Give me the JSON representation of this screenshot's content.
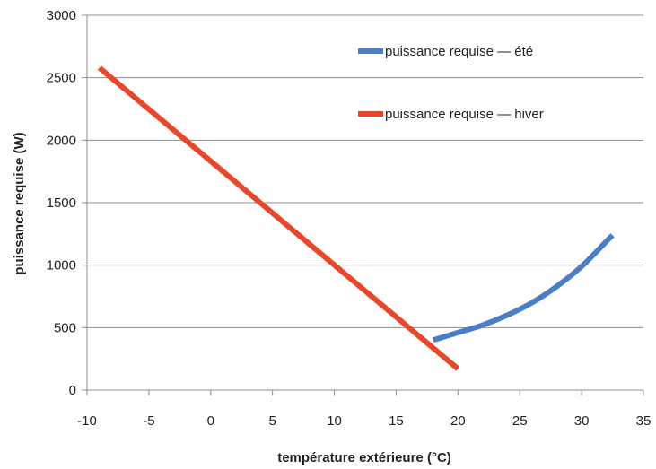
{
  "chart_data": {
    "type": "line",
    "title": "",
    "xlabel": "température extérieure (°C)",
    "ylabel": "puissance requise (W)",
    "xlim": [
      -10,
      35
    ],
    "ylim": [
      0,
      3000
    ],
    "grid": "horizontal",
    "legend_position": "top-right",
    "x_ticks": [
      "-10",
      "-5",
      "0",
      "5",
      "10",
      "15",
      "20",
      "25",
      "30",
      "35"
    ],
    "y_ticks": [
      "0",
      "500",
      "1000",
      "1500",
      "2000",
      "2500",
      "3000"
    ],
    "x_tick_values": [
      -10,
      -5,
      0,
      5,
      10,
      15,
      20,
      25,
      30,
      35
    ],
    "y_tick_values": [
      0,
      500,
      1000,
      1500,
      2000,
      2500,
      3000
    ],
    "series": [
      {
        "name": "puissance requise — été",
        "color": "#4a7fc8",
        "x": [
          18,
          20,
          22,
          24,
          26,
          28,
          30,
          32,
          32.5
        ],
        "y": [
          400,
          460,
          520,
          600,
          700,
          830,
          990,
          1190,
          1240
        ]
      },
      {
        "name": "puissance requise — hiver",
        "color": "#e8472a",
        "x": [
          -9,
          20
        ],
        "y": [
          2580,
          170
        ]
      }
    ]
  }
}
